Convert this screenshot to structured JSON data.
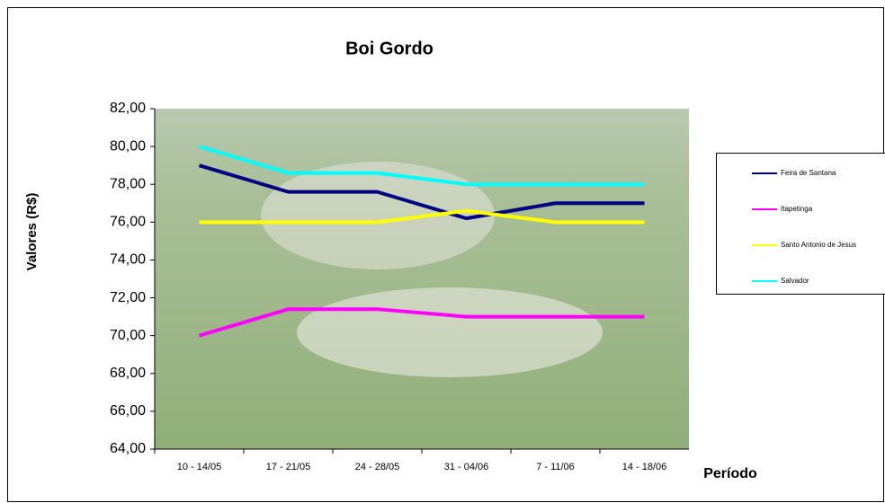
{
  "chart_data": {
    "type": "line",
    "title": "Boi Gordo",
    "x_label": "Período",
    "y_label": "Valores (R$)",
    "categories": [
      "10 - 14/05",
      "17 - 21/05",
      "24 - 28/05",
      "31 - 04/06",
      "7 - 11/06",
      "14 - 18/06"
    ],
    "series": [
      {
        "name": "Feira de Santana",
        "color": "#000080",
        "values": [
          79,
          77.6,
          77.6,
          76.2,
          77,
          77
        ]
      },
      {
        "name": "Itapetinga",
        "color": "#ff00ff",
        "values": [
          70,
          71.4,
          71.4,
          71,
          71,
          71
        ]
      },
      {
        "name": "Santo Antonio de Jesus",
        "color": "#ffff00",
        "values": [
          76,
          76,
          76,
          76.6,
          76,
          76
        ]
      },
      {
        "name": "Salvador",
        "color": "#00ffff",
        "values": [
          80,
          78.6,
          78.6,
          78,
          78,
          78
        ]
      }
    ],
    "ylim": [
      64,
      82
    ],
    "yticks": [
      {
        "value": 64,
        "label": "64,00"
      },
      {
        "value": 66,
        "label": "66,00"
      },
      {
        "value": 68,
        "label": "68,00"
      },
      {
        "value": 70,
        "label": "70,00"
      },
      {
        "value": 72,
        "label": "72,00"
      },
      {
        "value": 74,
        "label": "74,00"
      },
      {
        "value": 76,
        "label": "76,00"
      },
      {
        "value": 78,
        "label": "78,00"
      },
      {
        "value": 80,
        "label": "80,00"
      },
      {
        "value": 82,
        "label": "82,00"
      }
    ],
    "legend": "right"
  }
}
